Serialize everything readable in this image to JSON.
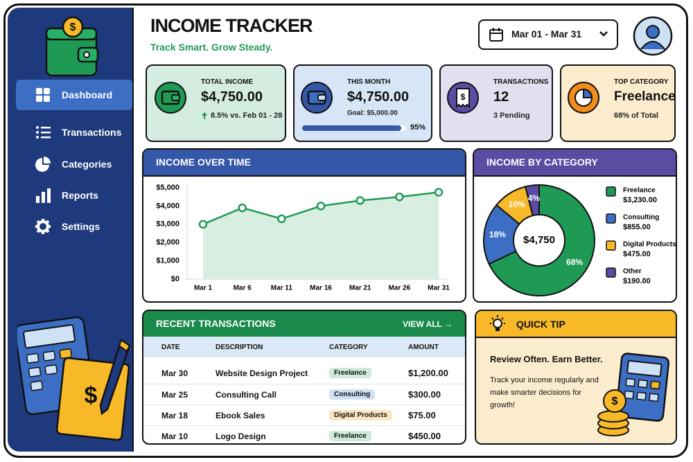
{
  "header": {
    "title": "INCOME TRACKER",
    "subtitle": "Track Smart. Grow Steady.",
    "date_range": "Mar 01 - Mar 31"
  },
  "nav": [
    "Dashboard",
    "Transactions",
    "Categories",
    "Reports",
    "Settings"
  ],
  "cards": [
    {
      "label": "TOTAL INCOME",
      "value": "$4,750.00",
      "note": "8.5% vs. Feb 01 - 28"
    },
    {
      "label": "THIS MONTH",
      "value": "$4,750.00",
      "note": "Goal: $5,000.00",
      "progress": 95,
      "progress_label": "95%"
    },
    {
      "label": "TRANSACTIONS",
      "value": "12",
      "note": "3 Pending"
    },
    {
      "label": "TOP CATEGORY",
      "value": "Freelance",
      "note": "68% of Total"
    }
  ],
  "chart_data": [
    {
      "type": "line",
      "title": "INCOME OVER TIME",
      "categories": [
        "Mar 1",
        "Mar 6",
        "Mar 11",
        "Mar 16",
        "Mar 21",
        "Mar 26",
        "Mar 31"
      ],
      "values": [
        3000,
        3900,
        3300,
        4000,
        4300,
        4500,
        4750
      ],
      "color": "#1e9a55",
      "area_color": "#d7eee0",
      "ylim": [
        0,
        5000
      ],
      "yticks": [
        {
          "value": 0,
          "label": "$0"
        },
        {
          "value": 1000,
          "label": "$1,000"
        },
        {
          "value": 2000,
          "label": "$2,000"
        },
        {
          "value": 3000,
          "label": "$3,000"
        },
        {
          "value": 4000,
          "label": "$4,000"
        },
        {
          "value": 5000,
          "label": "$5,000"
        }
      ]
    },
    {
      "type": "pie",
      "title": "INCOME BY CATEGORY",
      "donut": true,
      "center_label": "$4,750",
      "categories": [
        "Freelance",
        "Consulting",
        "Digital Products",
        "Other"
      ],
      "values": [
        68,
        18,
        10,
        4
      ],
      "value_labels": [
        "68%",
        "18%",
        "10%",
        "4%"
      ],
      "amounts": [
        "$3,230.00",
        "$855.00",
        "$475.00",
        "$190.00"
      ],
      "colors": [
        "#1e9a55",
        "#3c6fc4",
        "#f7b928",
        "#5a4ca3"
      ]
    }
  ],
  "transactions": {
    "title": "RECENT TRANSACTIONS",
    "link": "VIEW ALL →",
    "columns": [
      "DATE",
      "DESCRIPTION",
      "CATEGORY",
      "AMOUNT"
    ],
    "rows": [
      {
        "date": "Mar 30",
        "description": "Website Design Project",
        "category": "Freelance",
        "amount": "$1,200.00",
        "pill_color": "#cdebd8"
      },
      {
        "date": "Mar 25",
        "description": "Consulting Call",
        "category": "Consulting",
        "amount": "$300.00",
        "pill_color": "#cfe1f5"
      },
      {
        "date": "Mar 18",
        "description": "Ebook Sales",
        "category": "Digital Products",
        "amount": "$75.00",
        "pill_color": "#fbe6c2"
      },
      {
        "date": "Mar 10",
        "description": "Logo Design",
        "category": "Freelance",
        "amount": "$450.00",
        "pill_color": "#cdebd8"
      }
    ]
  },
  "tip": {
    "title": "QUICK TIP",
    "heading": "Review Often. Earn Better.",
    "body": "Track your income regularly and make smarter decisions for growth!"
  }
}
